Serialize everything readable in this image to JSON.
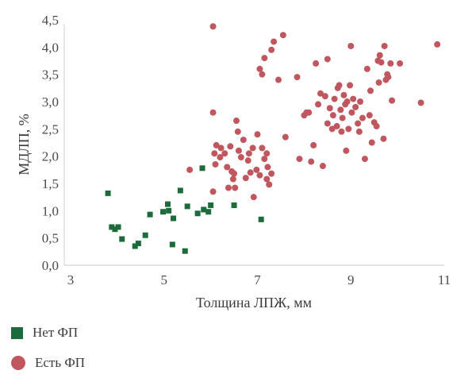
{
  "chart_data": {
    "type": "scatter",
    "xlabel": "Толщина ЛПЖ, мм",
    "ylabel": "МДЛП, %",
    "xlim": [
      3,
      11
    ],
    "ylim": [
      0,
      4.5
    ],
    "x_ticks": [
      "3",
      "5",
      "7",
      "9",
      "11"
    ],
    "y_ticks": [
      "0,0",
      "0,5",
      "1,0",
      "1,5",
      "2,0",
      "2,5",
      "3,0",
      "3,5",
      "4,0",
      "4,5"
    ],
    "grid": false,
    "legend_position": "bottom-left",
    "series": [
      {
        "name": "Нет ФП",
        "marker": "square",
        "color": "#1c6b3a",
        "points": [
          [
            3.8,
            1.32
          ],
          [
            3.88,
            0.7
          ],
          [
            3.95,
            0.66
          ],
          [
            4.02,
            0.7
          ],
          [
            4.1,
            0.48
          ],
          [
            4.38,
            0.35
          ],
          [
            4.45,
            0.4
          ],
          [
            4.6,
            0.55
          ],
          [
            4.7,
            0.93
          ],
          [
            4.98,
            0.98
          ],
          [
            5.08,
            1.12
          ],
          [
            5.1,
            1.0
          ],
          [
            5.18,
            0.38
          ],
          [
            5.2,
            0.86
          ],
          [
            5.35,
            1.37
          ],
          [
            5.45,
            0.26
          ],
          [
            5.5,
            1.08
          ],
          [
            5.72,
            0.95
          ],
          [
            5.82,
            1.78
          ],
          [
            5.85,
            1.02
          ],
          [
            5.95,
            0.98
          ],
          [
            6.0,
            1.1
          ],
          [
            6.5,
            1.1
          ],
          [
            7.08,
            0.84
          ]
        ]
      },
      {
        "name": "Есть ФП",
        "marker": "circle",
        "color": "#c0575e",
        "points": [
          [
            6.05,
            4.38
          ],
          [
            5.55,
            1.75
          ],
          [
            6.05,
            1.35
          ],
          [
            6.05,
            2.8
          ],
          [
            6.08,
            2.05
          ],
          [
            6.1,
            1.85
          ],
          [
            6.12,
            2.2
          ],
          [
            6.22,
            2.15
          ],
          [
            6.2,
            1.98
          ],
          [
            6.3,
            2.05
          ],
          [
            6.35,
            1.8
          ],
          [
            6.38,
            1.42
          ],
          [
            6.42,
            2.18
          ],
          [
            6.45,
            1.72
          ],
          [
            6.48,
            1.58
          ],
          [
            6.5,
            1.68
          ],
          [
            6.52,
            1.42
          ],
          [
            6.55,
            2.65
          ],
          [
            6.58,
            2.45
          ],
          [
            6.6,
            2.1
          ],
          [
            6.65,
            1.98
          ],
          [
            6.7,
            2.3
          ],
          [
            6.75,
            1.6
          ],
          [
            6.8,
            1.92
          ],
          [
            6.82,
            2.05
          ],
          [
            6.85,
            1.7
          ],
          [
            6.9,
            2.15
          ],
          [
            6.92,
            1.25
          ],
          [
            6.98,
            1.75
          ],
          [
            7.0,
            2.4
          ],
          [
            7.05,
            1.65
          ],
          [
            7.1,
            2.15
          ],
          [
            7.15,
            1.95
          ],
          [
            7.2,
            2.05
          ],
          [
            7.2,
            1.58
          ],
          [
            7.22,
            1.8
          ],
          [
            7.25,
            1.48
          ],
          [
            7.3,
            1.68
          ],
          [
            7.05,
            3.6
          ],
          [
            7.1,
            3.5
          ],
          [
            7.15,
            3.8
          ],
          [
            7.3,
            3.95
          ],
          [
            7.35,
            4.1
          ],
          [
            7.45,
            3.4
          ],
          [
            7.55,
            4.22
          ],
          [
            7.6,
            2.35
          ],
          [
            7.85,
            3.45
          ],
          [
            7.9,
            1.95
          ],
          [
            8.0,
            2.75
          ],
          [
            8.05,
            2.8
          ],
          [
            8.1,
            2.8
          ],
          [
            8.15,
            1.9
          ],
          [
            8.2,
            2.2
          ],
          [
            8.25,
            3.7
          ],
          [
            8.3,
            2.95
          ],
          [
            8.35,
            3.15
          ],
          [
            8.4,
            1.82
          ],
          [
            8.45,
            3.1
          ],
          [
            8.5,
            2.6
          ],
          [
            8.5,
            3.78
          ],
          [
            8.55,
            2.88
          ],
          [
            8.6,
            2.5
          ],
          [
            8.62,
            2.75
          ],
          [
            8.65,
            3.05
          ],
          [
            8.7,
            2.55
          ],
          [
            8.72,
            3.25
          ],
          [
            8.75,
            3.3
          ],
          [
            8.78,
            2.85
          ],
          [
            8.8,
            2.45
          ],
          [
            8.82,
            2.7
          ],
          [
            8.85,
            3.12
          ],
          [
            8.88,
            2.95
          ],
          [
            8.9,
            2.1
          ],
          [
            8.92,
            3.0
          ],
          [
            8.95,
            2.5
          ],
          [
            8.98,
            3.3
          ],
          [
            9.0,
            4.02
          ],
          [
            9.02,
            2.8
          ],
          [
            9.05,
            3.05
          ],
          [
            9.1,
            2.9
          ],
          [
            9.15,
            2.6
          ],
          [
            9.18,
            2.45
          ],
          [
            9.2,
            3.0
          ],
          [
            9.25,
            2.7
          ],
          [
            9.3,
            1.95
          ],
          [
            9.35,
            3.6
          ],
          [
            9.4,
            2.75
          ],
          [
            9.42,
            3.2
          ],
          [
            9.45,
            2.25
          ],
          [
            9.5,
            2.62
          ],
          [
            9.55,
            2.55
          ],
          [
            9.58,
            3.75
          ],
          [
            9.6,
            3.35
          ],
          [
            9.62,
            3.85
          ],
          [
            9.65,
            3.72
          ],
          [
            9.7,
            2.32
          ],
          [
            9.72,
            4.02
          ],
          [
            9.75,
            3.4
          ],
          [
            9.78,
            3.5
          ],
          [
            9.8,
            3.45
          ],
          [
            9.85,
            3.7
          ],
          [
            9.88,
            3.02
          ],
          [
            10.05,
            3.7
          ],
          [
            10.5,
            2.98
          ],
          [
            10.85,
            4.05
          ]
        ]
      }
    ]
  }
}
